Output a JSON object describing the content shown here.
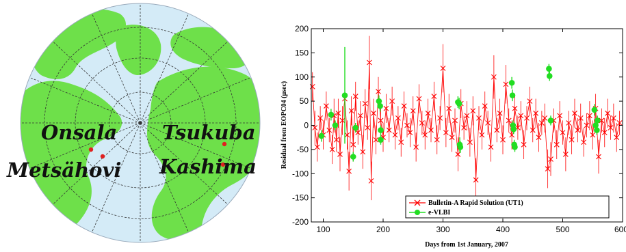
{
  "map": {
    "labels": {
      "onsala": "Onsala",
      "metsahovi": "Metsähovi",
      "tsukuba": "Tsukuba",
      "kashima": "Kashima"
    },
    "colors": {
      "ocean": "#d4ebf7",
      "land": "#6ee04a",
      "grid": "#333333",
      "station": "#e02020"
    }
  },
  "chart_data": {
    "type": "scatter",
    "xlabel": "Days from 1st January, 2007",
    "ylabel": "Residual from  EOPC04 (μsec)",
    "xlim": [
      80,
      600
    ],
    "ylim": [
      -200,
      200
    ],
    "x_ticks": [
      100,
      200,
      300,
      400,
      500,
      600
    ],
    "y_ticks": [
      -200,
      -150,
      -100,
      -50,
      0,
      50,
      100,
      150,
      200
    ],
    "grid": false,
    "legend_position": "bottom-center",
    "series": [
      {
        "name": "Bulletin-A Rapid Solution (UT1)",
        "color": "#ff0000",
        "marker": "x",
        "points": [
          [
            82,
            80,
            30
          ],
          [
            86,
            -5,
            35
          ],
          [
            90,
            -45,
            30
          ],
          [
            95,
            15,
            25
          ],
          [
            100,
            -20,
            30
          ],
          [
            105,
            40,
            30
          ],
          [
            110,
            -10,
            25
          ],
          [
            115,
            -50,
            30
          ],
          [
            118,
            20,
            35
          ],
          [
            122,
            -30,
            25
          ],
          [
            125,
            25,
            30
          ],
          [
            128,
            -60,
            35
          ],
          [
            132,
            10,
            30
          ],
          [
            136,
            55,
            25
          ],
          [
            140,
            -20,
            30
          ],
          [
            143,
            -95,
            40
          ],
          [
            147,
            30,
            30
          ],
          [
            150,
            -40,
            35
          ],
          [
            154,
            60,
            30
          ],
          [
            158,
            -15,
            25
          ],
          [
            162,
            20,
            30
          ],
          [
            166,
            -55,
            35
          ],
          [
            170,
            45,
            30
          ],
          [
            174,
            -5,
            25
          ],
          [
            177,
            130,
            55
          ],
          [
            180,
            -115,
            40
          ],
          [
            184,
            25,
            30
          ],
          [
            188,
            -30,
            30
          ],
          [
            192,
            70,
            30
          ],
          [
            196,
            10,
            25
          ],
          [
            200,
            -25,
            30
          ],
          [
            205,
            35,
            30
          ],
          [
            210,
            -10,
            25
          ],
          [
            215,
            50,
            30
          ],
          [
            220,
            -20,
            30
          ],
          [
            225,
            15,
            25
          ],
          [
            230,
            -35,
            30
          ],
          [
            235,
            40,
            30
          ],
          [
            240,
            0,
            25
          ],
          [
            245,
            -15,
            30
          ],
          [
            250,
            30,
            30
          ],
          [
            255,
            -45,
            30
          ],
          [
            260,
            55,
            30
          ],
          [
            265,
            5,
            25
          ],
          [
            270,
            -20,
            30
          ],
          [
            275,
            25,
            30
          ],
          [
            280,
            -10,
            25
          ],
          [
            285,
            60,
            30
          ],
          [
            290,
            -30,
            30
          ],
          [
            295,
            15,
            25
          ],
          [
            300,
            118,
            50
          ],
          [
            305,
            -15,
            30
          ],
          [
            310,
            35,
            30
          ],
          [
            315,
            -25,
            30
          ],
          [
            320,
            10,
            25
          ],
          [
            325,
            -60,
            35
          ],
          [
            330,
            45,
            30
          ],
          [
            335,
            -5,
            25
          ],
          [
            340,
            20,
            30
          ],
          [
            345,
            -35,
            30
          ],
          [
            350,
            30,
            30
          ],
          [
            355,
            -113,
            45
          ],
          [
            360,
            15,
            25
          ],
          [
            365,
            -20,
            30
          ],
          [
            370,
            40,
            30
          ],
          [
            375,
            5,
            25
          ],
          [
            380,
            -45,
            30
          ],
          [
            385,
            100,
            45
          ],
          [
            390,
            -10,
            25
          ],
          [
            395,
            25,
            30
          ],
          [
            400,
            -30,
            30
          ],
          [
            405,
            85,
            40
          ],
          [
            410,
            10,
            25
          ],
          [
            415,
            -20,
            30
          ],
          [
            420,
            35,
            30
          ],
          [
            425,
            -5,
            25
          ],
          [
            430,
            20,
            30
          ],
          [
            435,
            -40,
            30
          ],
          [
            440,
            15,
            25
          ],
          [
            445,
            50,
            30
          ],
          [
            450,
            -10,
            25
          ],
          [
            455,
            25,
            30
          ],
          [
            460,
            -25,
            30
          ],
          [
            465,
            5,
            25
          ],
          [
            470,
            15,
            30
          ],
          [
            475,
            -90,
            40
          ],
          [
            480,
            -70,
            35
          ],
          [
            485,
            10,
            25
          ],
          [
            490,
            -40,
            30
          ],
          [
            495,
            20,
            30
          ],
          [
            500,
            -15,
            25
          ],
          [
            505,
            -60,
            35
          ],
          [
            510,
            5,
            25
          ],
          [
            515,
            -30,
            30
          ],
          [
            520,
            25,
            30
          ],
          [
            525,
            -10,
            25
          ],
          [
            530,
            15,
            30
          ],
          [
            535,
            -35,
            30
          ],
          [
            540,
            0,
            25
          ],
          [
            545,
            20,
            30
          ],
          [
            550,
            -20,
            30
          ],
          [
            555,
            35,
            30
          ],
          [
            560,
            -65,
            35
          ],
          [
            565,
            10,
            25
          ],
          [
            570,
            -15,
            30
          ],
          [
            575,
            25,
            30
          ],
          [
            580,
            -5,
            25
          ],
          [
            585,
            15,
            30
          ],
          [
            590,
            -25,
            30
          ],
          [
            595,
            5,
            25
          ]
        ]
      },
      {
        "name": "e-VLBI",
        "color": "#22dd22",
        "marker": "circle",
        "points": [
          [
            97,
            -22,
            12
          ],
          [
            113,
            22,
            12
          ],
          [
            120,
            0,
            10
          ],
          [
            136,
            62,
            100
          ],
          [
            150,
            -65,
            10
          ],
          [
            154,
            -5,
            10
          ],
          [
            193,
            50,
            12
          ],
          [
            195,
            40,
            12
          ],
          [
            196,
            -10,
            10
          ],
          [
            196,
            -30,
            10
          ],
          [
            325,
            48,
            12
          ],
          [
            327,
            45,
            12
          ],
          [
            328,
            -40,
            15
          ],
          [
            329,
            -45,
            12
          ],
          [
            415,
            88,
            12
          ],
          [
            416,
            62,
            12
          ],
          [
            417,
            0,
            10
          ],
          [
            418,
            -8,
            10
          ],
          [
            419,
            -40,
            10
          ],
          [
            420,
            -45,
            10
          ],
          [
            477,
            117,
            10
          ],
          [
            478,
            102,
            10
          ],
          [
            480,
            10,
            10
          ],
          [
            553,
            32,
            12
          ],
          [
            555,
            0,
            10
          ],
          [
            557,
            -10,
            10
          ],
          [
            558,
            10,
            10
          ]
        ]
      }
    ]
  }
}
